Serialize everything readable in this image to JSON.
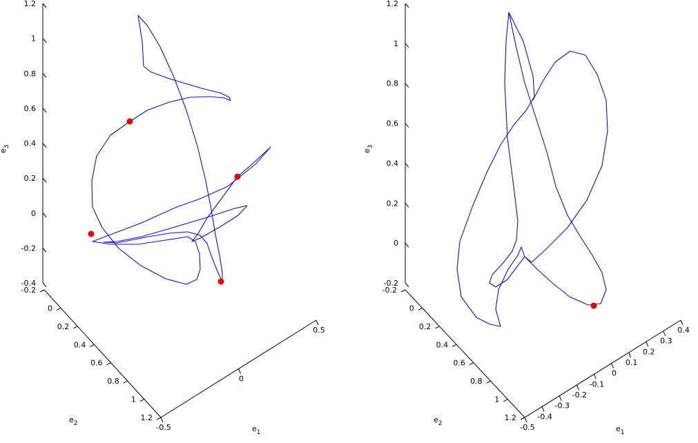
{
  "colors": {
    "curve": "#1010c8",
    "marker": "#e60000",
    "axis": "#000000"
  },
  "chart_data": [
    {
      "type": "line",
      "projection": "3d",
      "xlabel": "e",
      "xlabel_sub": "1",
      "ylabel": "e",
      "ylabel_sub": "2",
      "zlabel": "e",
      "zlabel_sub": "3",
      "xlim": [
        -0.5,
        0.5
      ],
      "ylim": [
        -0.2,
        1.2
      ],
      "zlim": [
        -0.4,
        1.2
      ],
      "x_ticks": [
        "-0.5",
        "0",
        "0.5"
      ],
      "y_ticks": [
        "-0.2",
        "0",
        "0.2",
        "0.4",
        "0.6",
        "0.8",
        "1",
        "1.2"
      ],
      "z_ticks": [
        "-0.4",
        "-0.2",
        "0",
        "0.2",
        "0.4",
        "0.6",
        "0.8",
        "1",
        "1.2"
      ],
      "markers": 4,
      "grid": false
    },
    {
      "type": "line",
      "projection": "3d",
      "xlabel": "e",
      "xlabel_sub": "1",
      "ylabel": "e",
      "ylabel_sub": "2",
      "zlabel": "e",
      "zlabel_sub": "3",
      "xlim": [
        -0.5,
        0.4
      ],
      "ylim": [
        -0.2,
        1.2
      ],
      "zlim": [
        -0.2,
        1.2
      ],
      "x_ticks": [
        "-0.5",
        "-0.4",
        "-0.3",
        "-0.2",
        "-0.1",
        "0",
        "0.1",
        "0.2",
        "0.3",
        "0.4"
      ],
      "y_ticks": [
        "-0.2",
        "0",
        "0.2",
        "0.4",
        "0.6",
        "0.8",
        "1",
        "1.2"
      ],
      "z_ticks": [
        "-0.2",
        "0",
        "0.2",
        "0.4",
        "0.6",
        "0.8",
        "1",
        "1.2"
      ],
      "markers": 1,
      "grid": false
    }
  ]
}
